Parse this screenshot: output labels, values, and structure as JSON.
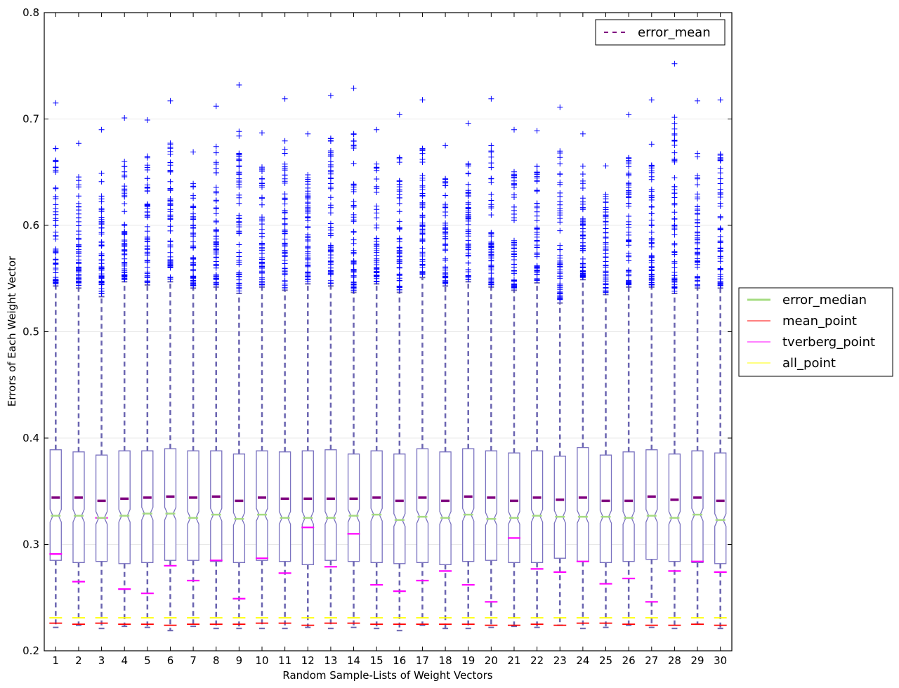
{
  "chart_data": {
    "type": "boxplot",
    "title": "",
    "xlabel": "Random Sample-Lists of Weight Vectors",
    "ylabel": "Errors of Each Weight Vector",
    "ylim": [
      0.2,
      0.8
    ],
    "yticks": [
      "0.2",
      "0.3",
      "0.4",
      "0.5",
      "0.6",
      "0.7",
      "0.8"
    ],
    "categories": [
      "1",
      "2",
      "3",
      "4",
      "5",
      "6",
      "7",
      "8",
      "9",
      "10",
      "11",
      "12",
      "13",
      "14",
      "15",
      "16",
      "17",
      "18",
      "19",
      "20",
      "21",
      "22",
      "23",
      "24",
      "25",
      "26",
      "27",
      "28",
      "29",
      "30"
    ],
    "grid": "horizontal",
    "boxes": {
      "q1": [
        0.285,
        0.283,
        0.284,
        0.282,
        0.283,
        0.285,
        0.285,
        0.284,
        0.283,
        0.285,
        0.284,
        0.281,
        0.285,
        0.284,
        0.283,
        0.282,
        0.283,
        0.281,
        0.284,
        0.285,
        0.283,
        0.283,
        0.287,
        0.284,
        0.283,
        0.284,
        0.286,
        0.284,
        0.283,
        0.282
      ],
      "median": [
        0.327,
        0.327,
        0.325,
        0.327,
        0.329,
        0.329,
        0.325,
        0.328,
        0.324,
        0.328,
        0.325,
        0.325,
        0.325,
        0.327,
        0.328,
        0.323,
        0.326,
        0.325,
        0.328,
        0.324,
        0.325,
        0.327,
        0.326,
        0.326,
        0.326,
        0.325,
        0.327,
        0.325,
        0.328,
        0.323
      ],
      "q3": [
        0.389,
        0.387,
        0.384,
        0.388,
        0.388,
        0.39,
        0.388,
        0.388,
        0.385,
        0.388,
        0.387,
        0.388,
        0.389,
        0.385,
        0.388,
        0.385,
        0.39,
        0.387,
        0.39,
        0.388,
        0.386,
        0.388,
        0.383,
        0.391,
        0.384,
        0.387,
        0.389,
        0.385,
        0.388,
        0.386
      ],
      "whisker_low": [
        0.222,
        0.224,
        0.221,
        0.223,
        0.222,
        0.219,
        0.223,
        0.221,
        0.221,
        0.221,
        0.221,
        0.222,
        0.221,
        0.222,
        0.221,
        0.219,
        0.224,
        0.221,
        0.221,
        0.222,
        0.223,
        0.222,
        0.224,
        0.221,
        0.222,
        0.224,
        0.222,
        0.221,
        0.225,
        0.221
      ],
      "whisker_high": [
        0.543,
        0.541,
        0.533,
        0.547,
        0.544,
        0.547,
        0.541,
        0.542,
        0.536,
        0.542,
        0.539,
        0.545,
        0.543,
        0.537,
        0.545,
        0.537,
        0.551,
        0.543,
        0.547,
        0.542,
        0.539,
        0.546,
        0.527,
        0.549,
        0.535,
        0.542,
        0.542,
        0.536,
        0.541,
        0.541
      ],
      "outlier_max": [
        0.715,
        0.677,
        0.69,
        0.701,
        0.699,
        0.717,
        0.669,
        0.712,
        0.732,
        0.687,
        0.719,
        0.686,
        0.722,
        0.729,
        0.69,
        0.704,
        0.718,
        0.675,
        0.696,
        0.719,
        0.69,
        0.689,
        0.711,
        0.686,
        0.656,
        0.704,
        0.718,
        0.752,
        0.717,
        0.718
      ]
    },
    "series": [
      {
        "name": "error_mean",
        "color": "#7f007f",
        "values": [
          0.344,
          0.344,
          0.341,
          0.343,
          0.344,
          0.345,
          0.344,
          0.345,
          0.341,
          0.344,
          0.343,
          0.343,
          0.343,
          0.343,
          0.344,
          0.341,
          0.344,
          0.341,
          0.345,
          0.344,
          0.341,
          0.344,
          0.342,
          0.344,
          0.341,
          0.341,
          0.345,
          0.342,
          0.344,
          0.341
        ]
      },
      {
        "name": "error_median",
        "color": "#a6dc82",
        "values": [
          0.327,
          0.327,
          0.325,
          0.327,
          0.329,
          0.329,
          0.325,
          0.328,
          0.324,
          0.328,
          0.325,
          0.325,
          0.325,
          0.327,
          0.328,
          0.323,
          0.326,
          0.325,
          0.328,
          0.324,
          0.325,
          0.327,
          0.326,
          0.326,
          0.326,
          0.325,
          0.327,
          0.325,
          0.328,
          0.323
        ]
      },
      {
        "name": "mean_point",
        "color": "#ff0000",
        "values": [
          0.226,
          0.225,
          0.226,
          0.225,
          0.225,
          0.224,
          0.225,
          0.225,
          0.225,
          0.226,
          0.226,
          0.224,
          0.226,
          0.226,
          0.225,
          0.225,
          0.225,
          0.225,
          0.225,
          0.224,
          0.224,
          0.225,
          0.224,
          0.226,
          0.226,
          0.225,
          0.224,
          0.224,
          0.225,
          0.224
        ]
      },
      {
        "name": "tverberg_point",
        "color": "#ff00ff",
        "values": [
          0.291,
          0.265,
          0.325,
          0.258,
          0.254,
          0.28,
          0.266,
          0.285,
          0.249,
          0.287,
          0.273,
          0.316,
          0.279,
          0.31,
          0.262,
          0.256,
          0.266,
          0.275,
          0.262,
          0.246,
          0.306,
          0.277,
          0.274,
          0.284,
          0.263,
          0.268,
          0.246,
          0.275,
          0.284,
          0.274
        ]
      },
      {
        "name": "all_point",
        "color": "#ffff00",
        "values": [
          0.231,
          0.231,
          0.231,
          0.231,
          0.231,
          0.231,
          0.231,
          0.231,
          0.231,
          0.231,
          0.231,
          0.231,
          0.231,
          0.231,
          0.231,
          0.231,
          0.231,
          0.231,
          0.231,
          0.231,
          0.231,
          0.231,
          0.231,
          0.231,
          0.231,
          0.231,
          0.231,
          0.231,
          0.231,
          0.231
        ]
      }
    ],
    "legend_top": {
      "position": "top-right",
      "entries": [
        "error_mean"
      ]
    },
    "legend_side": {
      "position": "outside-right",
      "entries": [
        "error_median",
        "mean_point",
        "tverberg_point",
        "all_point"
      ]
    },
    "colors": {
      "box": "#7a72c0",
      "whisker": "#6a64b0",
      "outlier": "#0000ff",
      "grid": "#e8e8e8"
    }
  }
}
